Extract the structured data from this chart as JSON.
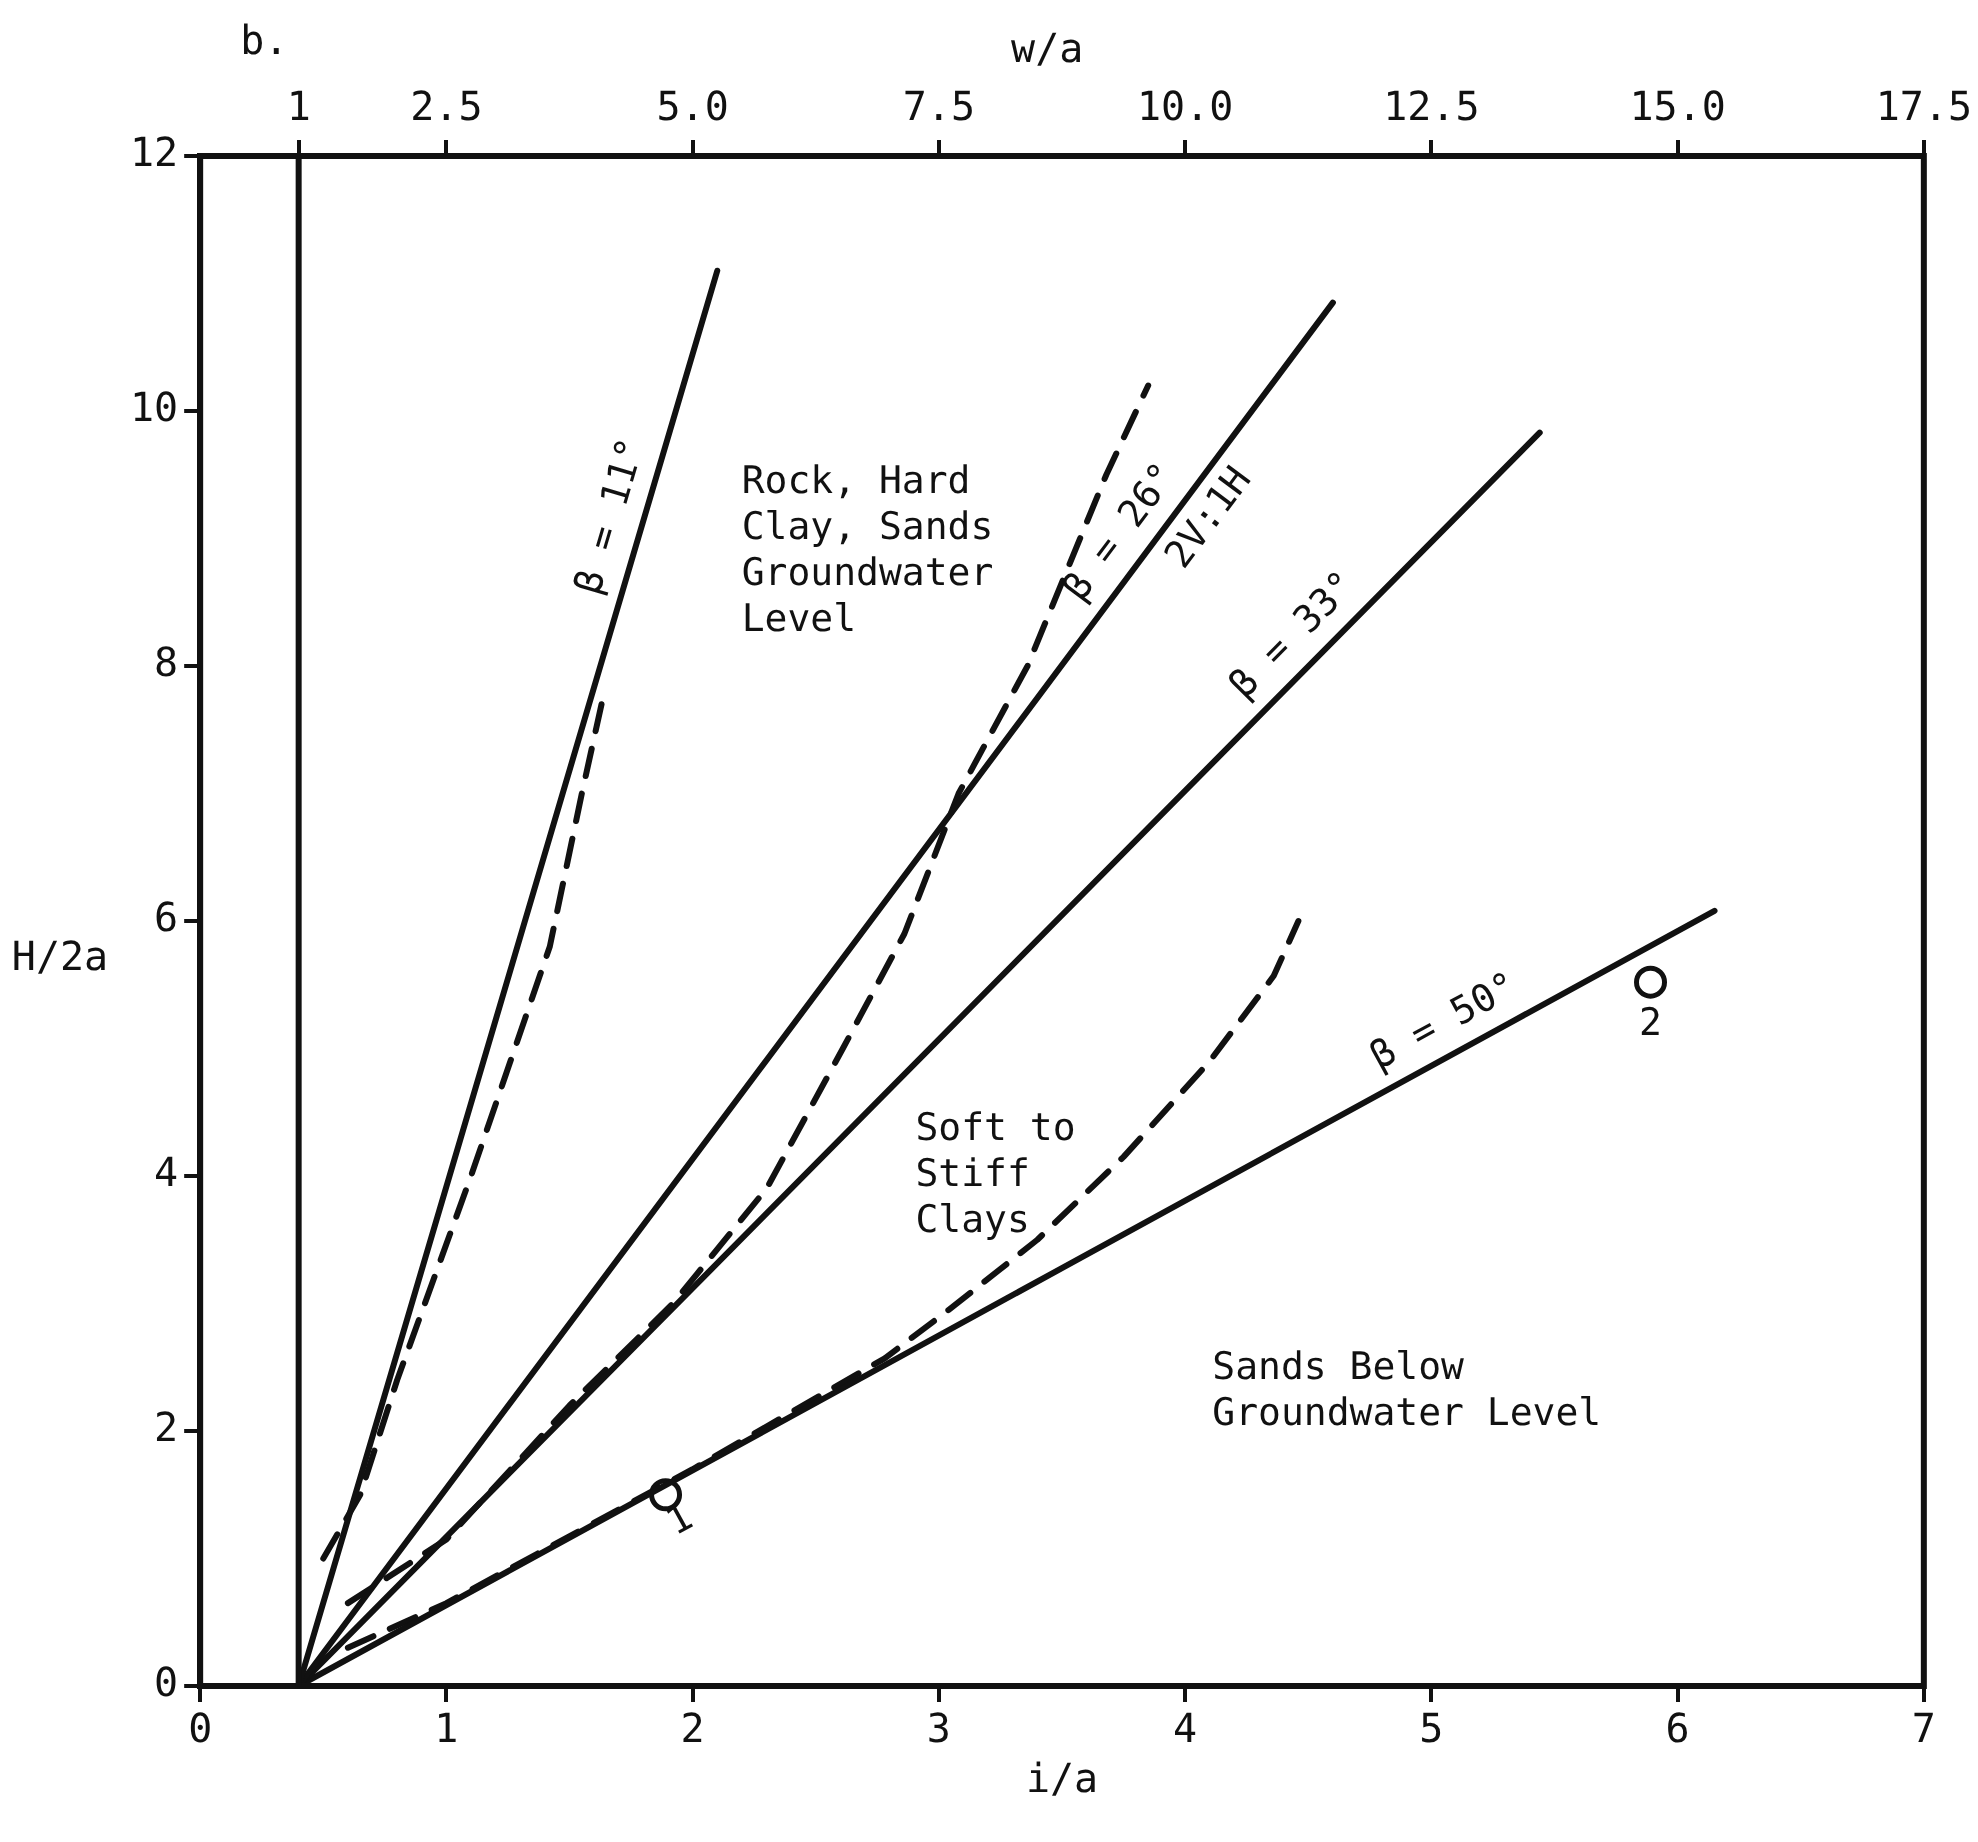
{
  "chart_data": {
    "type": "line",
    "title": "b.",
    "xlabel": "i/a",
    "ylabel": "H/2a",
    "x2label": "w/a",
    "xlim": [
      0,
      7
    ],
    "xticks": [
      0,
      1,
      2,
      3,
      4,
      5,
      6,
      7
    ],
    "x2lim": [
      0,
      17.5
    ],
    "x2ticks": [
      1,
      2.5,
      {
        "value": 5,
        "label": "5.0"
      },
      {
        "value": 7.5,
        "label": "7.5"
      },
      {
        "value": 10,
        "label": "10.0"
      },
      {
        "value": 12.5,
        "label": "12.5"
      },
      {
        "value": 15,
        "label": "15.0"
      },
      {
        "value": 17.5,
        "label": "17.5"
      }
    ],
    "ylim": [
      0,
      12
    ],
    "yticks": [
      0,
      2,
      4,
      6,
      8,
      10,
      12
    ],
    "grid": false,
    "legend": false,
    "series": [
      {
        "name": "β = 11°",
        "type": "line",
        "color": "#111111",
        "line_style": "solid",
        "x": [
          0.4,
          2.1
        ],
        "values": [
          0,
          11.1
        ]
      },
      {
        "name": "β = 26°",
        "type": "line",
        "color": "#111111",
        "line_style": "solid",
        "x": [
          0.4,
          4.6
        ],
        "values": [
          0,
          10.85
        ]
      },
      {
        "name": "β = 33°",
        "type": "line",
        "color": "#111111",
        "line_style": "solid",
        "x": [
          0.4,
          5.44
        ],
        "values": [
          0,
          9.83
        ]
      },
      {
        "name": "β = 50°",
        "type": "line",
        "color": "#111111",
        "line_style": "solid",
        "x": [
          0.4,
          6.15
        ],
        "values": [
          0,
          6.08
        ]
      },
      {
        "type": "line",
        "color": "#111111",
        "line_style": "dashed",
        "x": [
          0.5,
          0.65,
          0.8,
          1.1,
          1.42,
          1.55,
          1.63
        ],
        "values": [
          1.0,
          1.5,
          2.4,
          4.0,
          5.8,
          7.0,
          7.7
        ]
      },
      {
        "type": "line",
        "color": "#111111",
        "line_style": "dashed",
        "x": [
          0.6,
          1.0,
          1.5,
          1.92,
          2.3,
          2.61,
          2.86,
          3.08,
          3.36,
          3.68,
          3.85
        ],
        "values": [
          0.65,
          1.15,
          2.2,
          3.0,
          3.9,
          5.0,
          5.9,
          7.0,
          8.0,
          9.5,
          10.2
        ]
      },
      {
        "type": "line",
        "color": "#111111",
        "line_style": "dashed",
        "x": [
          0.6,
          1.0,
          2.0,
          2.78,
          3.04,
          3.4,
          3.75,
          4.1,
          4.36,
          4.46
        ],
        "values": [
          0.3,
          0.65,
          1.7,
          2.57,
          2.95,
          3.5,
          4.15,
          4.9,
          5.57,
          6.0
        ]
      },
      {
        "type": "scatter",
        "color": "#111111",
        "marker": "circle",
        "x": [
          1.89
        ],
        "values": [
          1.5
        ]
      },
      {
        "type": "scatter",
        "color": "#111111",
        "marker": "circle",
        "x": [
          5.89
        ],
        "values": [
          5.52
        ]
      }
    ],
    "ref_lines": [
      {
        "axis": "x",
        "value": 0.4,
        "color": "#111111"
      }
    ],
    "annotations": [
      "Rock, Hard\nClay, Sands\nGroundwater\nLevel",
      {
        "text": "2V:1H",
        "x": 4.0,
        "y": 9.3
      },
      "Soft to\nStiff\nClays",
      "Sands Below\nGroundwater Level",
      {
        "text": "1",
        "x": 1.89,
        "y": 1.5
      },
      {
        "text": "2",
        "x": 5.89,
        "y": 5.52
      }
    ]
  }
}
